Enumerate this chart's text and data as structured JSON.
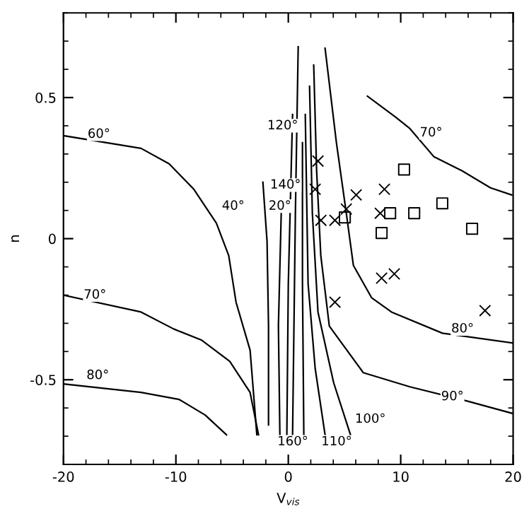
{
  "chart_data": {
    "type": "line",
    "xlabel": "V$_{vis}$",
    "ylabel": "n",
    "xlim": [
      -20,
      20
    ],
    "ylim": [
      -0.8,
      0.8
    ],
    "xticks": [
      -20,
      -10,
      0,
      10,
      20
    ],
    "yticks": [
      -0.5,
      0,
      0.5
    ],
    "grid": false,
    "legend": false,
    "line_style": "solid",
    "series": [
      {
        "color": "#000000",
        "marker": "none",
        "x": [
          -20,
          -13.1,
          -10.6,
          -8.4,
          -6.4,
          -5.3,
          -4.65,
          -3.4,
          -2.8
        ],
        "values": [
          0.365,
          0.32,
          0.265,
          0.175,
          0.055,
          -0.06,
          -0.225,
          -0.395,
          -0.695
        ]
      },
      {
        "color": "#000000",
        "marker": "none",
        "x": [
          -2.26,
          -1.89,
          -1.76,
          -1.76
        ],
        "values": [
          0.2,
          -0.01,
          -0.31,
          -0.66
        ]
      },
      {
        "color": "#000000",
        "marker": "none",
        "x": [
          -20,
          -13.1,
          -10.2,
          -7.7,
          -5.2,
          -3.4,
          -2.65
        ],
        "values": [
          -0.2,
          -0.26,
          -0.32,
          -0.36,
          -0.435,
          -0.545,
          -0.695
        ]
      },
      {
        "color": "#000000",
        "marker": "none",
        "x": [
          -20,
          -13.1,
          -9.7,
          -7.4,
          -5.5
        ],
        "values": [
          -0.515,
          -0.545,
          -0.57,
          -0.625,
          -0.695
        ]
      },
      {
        "color": "#000000",
        "marker": "none",
        "x": [
          7.04,
          9.56,
          10.82,
          12.96,
          15.47,
          17.99,
          19.87
        ],
        "values": [
          0.505,
          0.43,
          0.39,
          0.29,
          0.24,
          0.18,
          0.155
        ]
      },
      {
        "color": "#000000",
        "marker": "none",
        "x": [
          3.27,
          4.28,
          5.16,
          5.79,
          7.42,
          9.18,
          13.71,
          20
        ],
        "values": [
          0.675,
          0.34,
          0.09,
          -0.095,
          -0.21,
          -0.26,
          -0.335,
          -0.37
        ]
      },
      {
        "color": "#000000",
        "marker": "none",
        "x": [
          2.26,
          2.52,
          2.89,
          3.65,
          6.67,
          10.82,
          15.85,
          20
        ],
        "values": [
          0.615,
          0.24,
          -0.06,
          -0.31,
          -0.475,
          -0.525,
          -0.575,
          -0.62
        ]
      },
      {
        "color": "#000000",
        "marker": "none",
        "x": [
          1.89,
          2.14,
          2.64,
          4.03,
          5.53
        ],
        "values": [
          0.54,
          0.09,
          -0.26,
          -0.51,
          -0.695
        ]
      },
      {
        "color": "#000000",
        "marker": "none",
        "x": [
          1.51,
          1.76,
          2.39,
          3.27
        ],
        "values": [
          0.44,
          -0.16,
          -0.46,
          -0.695
        ]
      },
      {
        "color": "#000000",
        "marker": "none",
        "x": [
          0.88,
          0.63,
          0.38
        ],
        "values": [
          0.68,
          0.09,
          -0.695
        ]
      },
      {
        "color": "#000000",
        "marker": "none",
        "x": [
          0.38,
          0,
          -0.13
        ],
        "values": [
          0.44,
          -0.16,
          -0.695
        ]
      },
      {
        "color": "#000000",
        "marker": "none",
        "x": [
          1.26,
          1.26,
          1.38
        ],
        "values": [
          0.34,
          -0.16,
          -0.695
        ]
      },
      {
        "color": "#000000",
        "marker": "none",
        "x": [
          -0.63,
          -0.88,
          -0.75
        ],
        "values": [
          0.09,
          -0.31,
          -0.695
        ]
      },
      {
        "type": "scatter",
        "color": "#000000",
        "marker": "cross",
        "x": [
          2.64,
          2.39,
          2.9,
          4.15,
          5.16,
          6.04,
          8.55,
          8.18,
          4.15,
          8.3,
          9.43,
          17.5
        ],
        "values": [
          0.275,
          0.175,
          0.065,
          0.065,
          0.105,
          0.155,
          0.175,
          0.09,
          -0.225,
          -0.14,
          -0.125,
          -0.255
        ]
      },
      {
        "type": "scatter",
        "color": "#000000",
        "marker": "square",
        "x": [
          10.3,
          5.03,
          9.06,
          11.2,
          13.7,
          8.3,
          16.35
        ],
        "values": [
          0.245,
          0.075,
          0.09,
          0.09,
          0.125,
          0.02,
          0.035
        ]
      }
    ],
    "annotations": [
      {
        "text": "60°",
        "x": -16.85,
        "y": 0.37
      },
      {
        "text": "70°",
        "x": -17.2,
        "y": -0.2
      },
      {
        "text": "80°",
        "x": -16.95,
        "y": -0.485
      },
      {
        "text": "40°",
        "x": -4.9,
        "y": 0.115
      },
      {
        "text": "120°",
        "x": -0.5,
        "y": 0.4
      },
      {
        "text": "140°",
        "x": -0.25,
        "y": 0.19
      },
      {
        "text": "20°",
        "x": -0.75,
        "y": 0.115
      },
      {
        "text": "70°",
        "x": 12.7,
        "y": 0.375
      },
      {
        "text": "80°",
        "x": 15.5,
        "y": -0.32
      },
      {
        "text": "90°",
        "x": 14.6,
        "y": -0.56
      },
      {
        "text": "100°",
        "x": 7.3,
        "y": -0.64
      },
      {
        "text": "160°",
        "x": 0.4,
        "y": -0.72
      },
      {
        "text": "110°",
        "x": 4.3,
        "y": -0.72
      }
    ]
  }
}
